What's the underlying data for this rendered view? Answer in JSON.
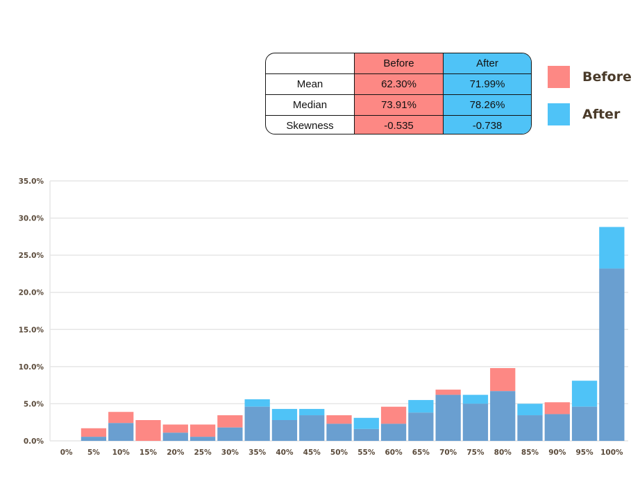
{
  "stats_table": {
    "headers": [
      "",
      "Before",
      "After"
    ],
    "rows": [
      {
        "label": "Mean",
        "before": "62.30%",
        "after": "71.99%"
      },
      {
        "label": "Median",
        "before": "73.91%",
        "after": "78.26%"
      },
      {
        "label": "Skewness",
        "before": "-0.535",
        "after": "-0.738"
      }
    ]
  },
  "legend": [
    {
      "label": "Before",
      "color": "#fd8884"
    },
    {
      "label": "After",
      "color": "#4fc3f7"
    }
  ],
  "colors": {
    "before": "#fd8884",
    "after": "#4fc3f7",
    "overlap": "#6a9fd0",
    "grid": "#e6e6e6"
  },
  "chart_data": {
    "type": "bar",
    "overlay": true,
    "categories": [
      "0%",
      "5%",
      "10%",
      "15%",
      "20%",
      "25%",
      "30%",
      "35%",
      "40%",
      "45%",
      "50%",
      "55%",
      "60%",
      "65%",
      "70%",
      "75%",
      "80%",
      "85%",
      "90%",
      "95%",
      "100%"
    ],
    "series": [
      {
        "name": "Before",
        "values": [
          0,
          1.7,
          3.9,
          2.8,
          2.2,
          2.2,
          3.45,
          4.6,
          2.8,
          3.45,
          3.45,
          1.6,
          4.6,
          3.8,
          6.9,
          5.0,
          9.8,
          3.45,
          5.2,
          4.6,
          23.2
        ]
      },
      {
        "name": "After",
        "values": [
          0,
          0.55,
          2.4,
          0,
          1.1,
          0.55,
          1.8,
          5.6,
          4.3,
          4.3,
          2.3,
          3.1,
          2.3,
          5.5,
          6.2,
          6.2,
          6.7,
          5.0,
          3.6,
          8.1,
          28.8
        ]
      }
    ],
    "yticks": [
      "0.0%",
      "5.0%",
      "10.0%",
      "15.0%",
      "20.0%",
      "25.0%",
      "30.0%",
      "35.0%"
    ],
    "ylim": [
      0,
      35
    ],
    "grid": true,
    "legend_position": "top-right"
  }
}
